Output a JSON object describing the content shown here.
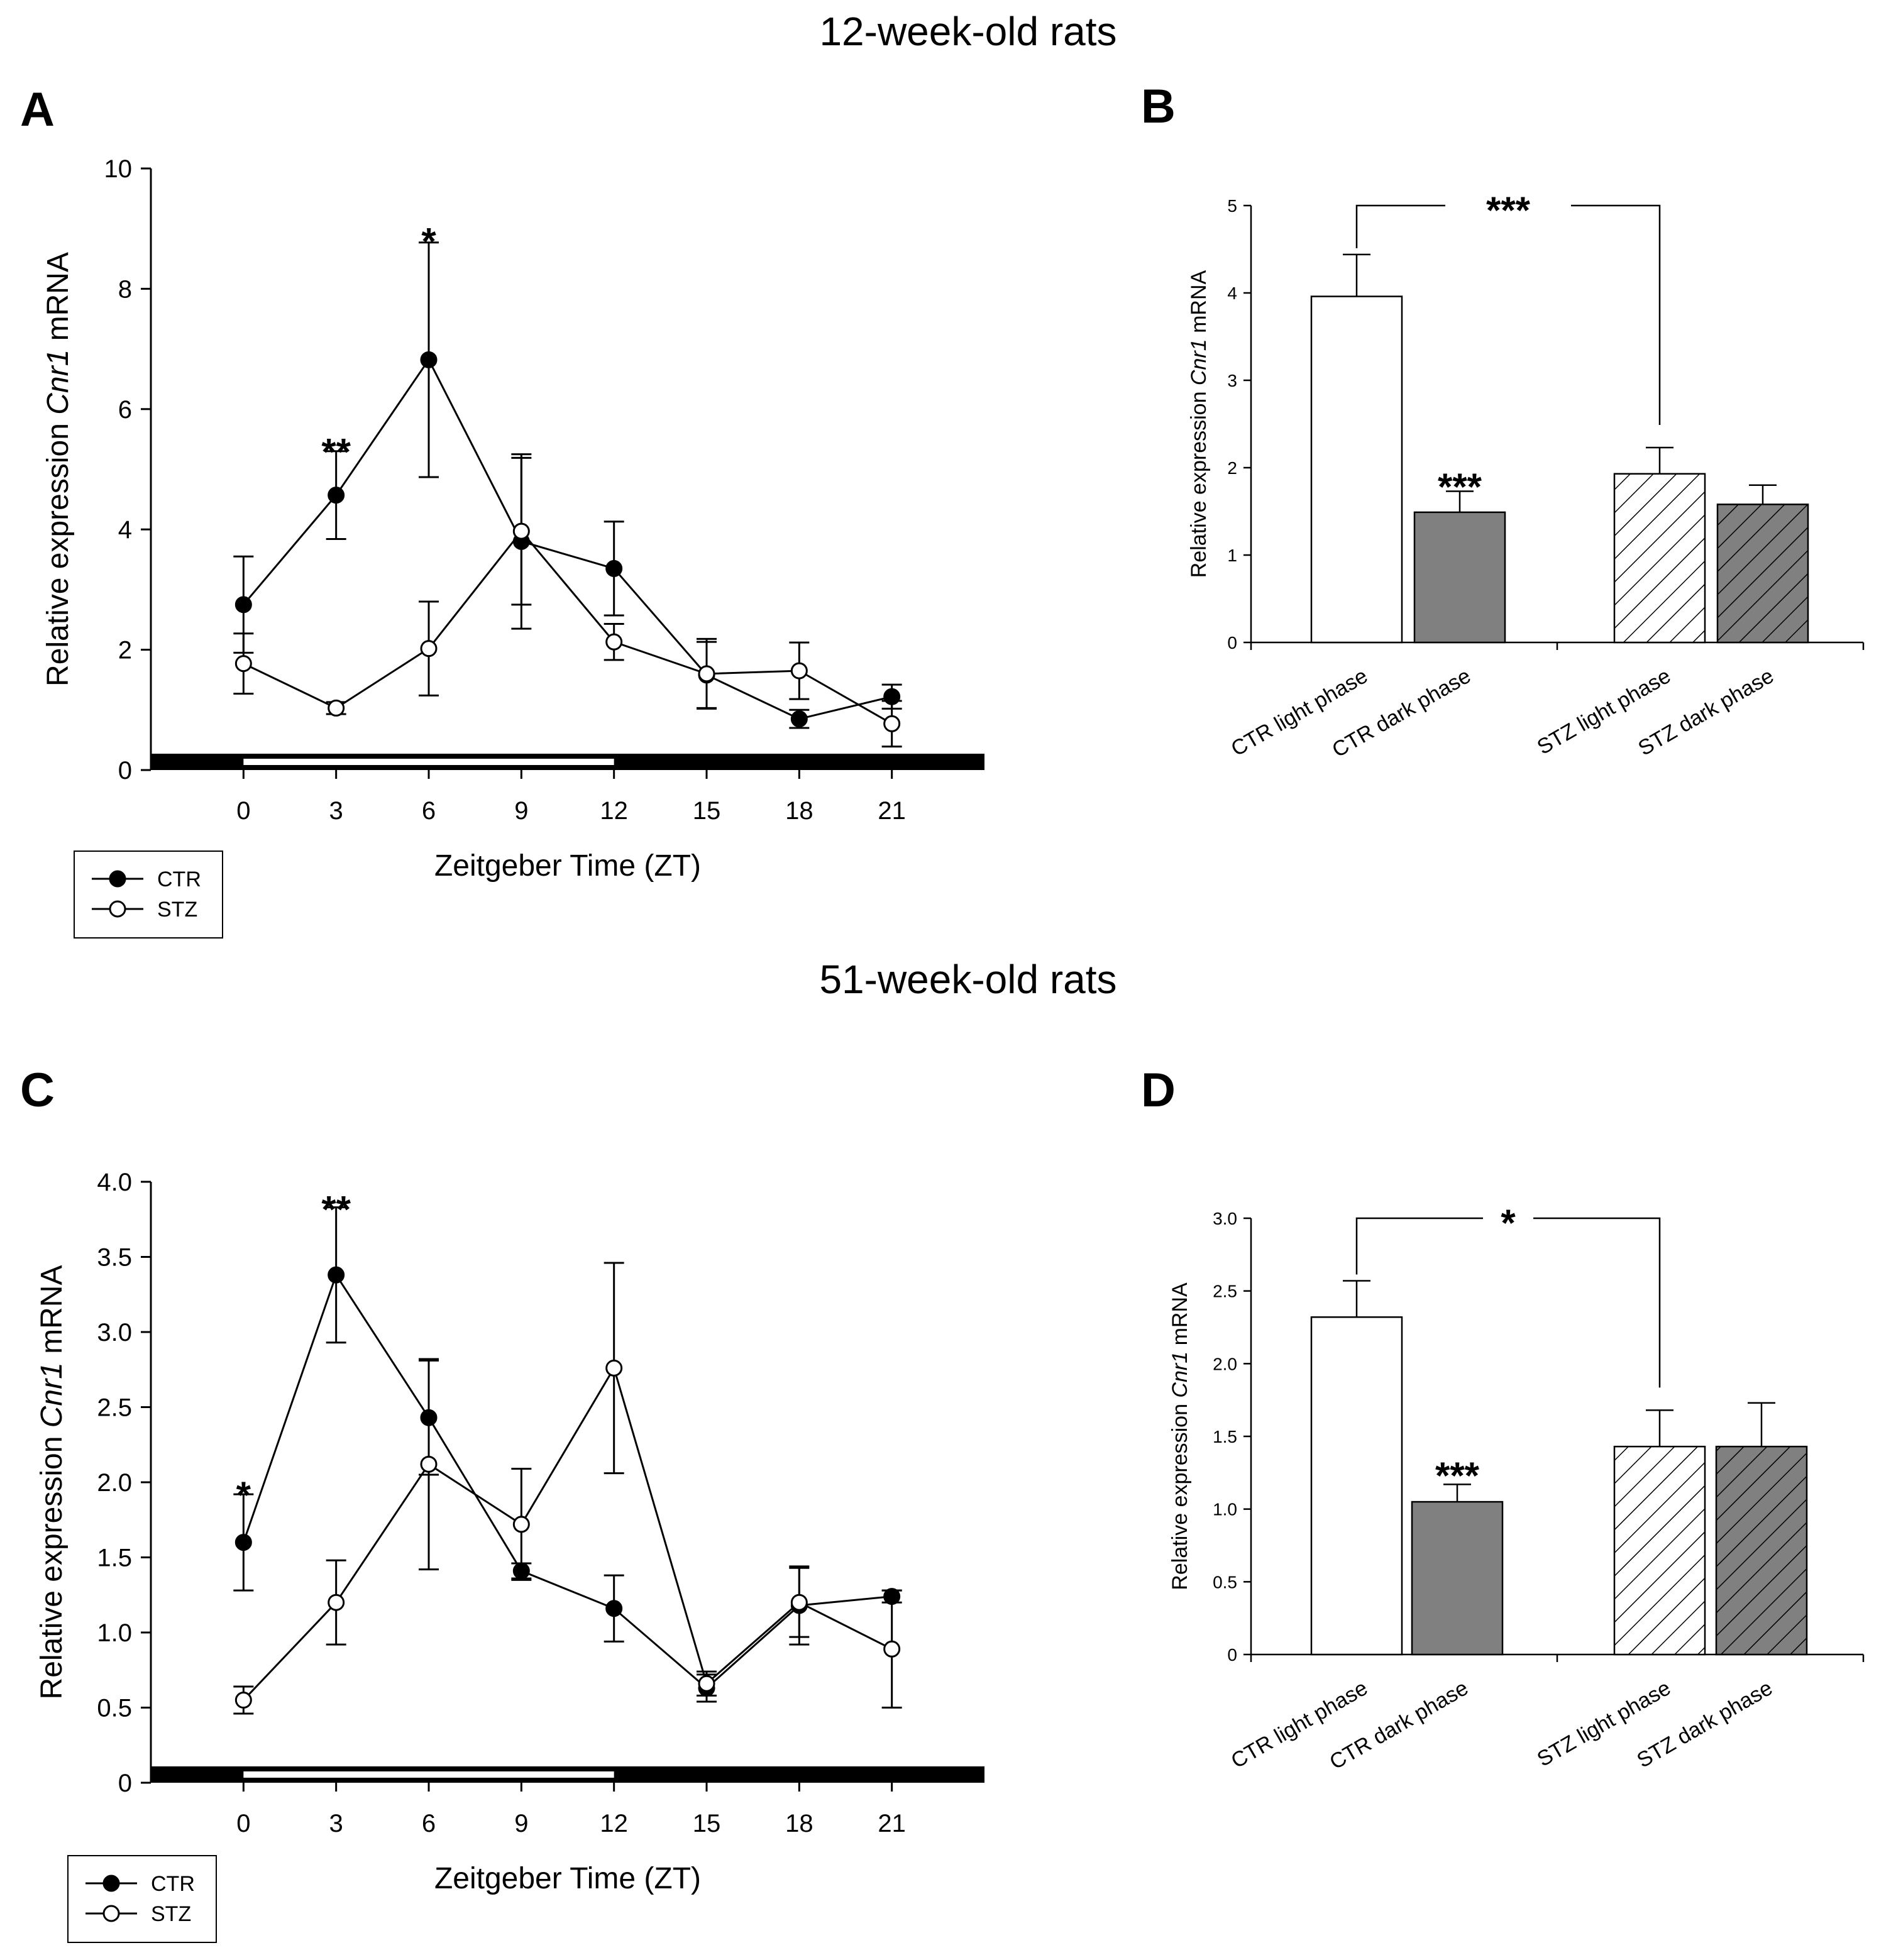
{
  "section_titles": [
    "12-week-old rats",
    "51-week-old rats"
  ],
  "colors": {
    "ctr_fill": "#000000",
    "stz_fill": "#ffffff",
    "dark_bar": "#808080",
    "line": "#000000"
  },
  "chart_data": [
    {
      "panel": "A",
      "type": "line",
      "xlabel": "Zeitgeber Time (ZT)",
      "ylabel": "Relative expression Cnr1 mRNA",
      "ylabel_parts": [
        "Relative expression ",
        "Cnr1",
        " mRNA"
      ],
      "x": [
        0,
        3,
        6,
        9,
        12,
        15,
        18,
        21
      ],
      "xlim": [
        -3,
        24
      ],
      "ylim": [
        0,
        10
      ],
      "yticks": [
        0,
        2,
        4,
        6,
        8,
        10
      ],
      "ytick_labels": [
        "0",
        "2",
        "4",
        "6",
        "8",
        "10"
      ],
      "light_phase": [
        0,
        12
      ],
      "series": [
        {
          "name": "CTR",
          "marker": "filled-circle",
          "values": [
            2.75,
            4.57,
            6.82,
            3.8,
            3.35,
            1.58,
            0.85,
            1.22
          ],
          "errors": [
            0.8,
            0.73,
            1.95,
            1.45,
            0.78,
            0.55,
            0.15,
            0.2
          ]
        },
        {
          "name": "STZ",
          "marker": "open-circle",
          "values": [
            1.77,
            1.03,
            2.02,
            3.97,
            2.13,
            1.6,
            1.65,
            0.77
          ],
          "errors": [
            0.5,
            0.1,
            0.78,
            1.22,
            0.3,
            0.58,
            0.47,
            0.38
          ]
        }
      ],
      "annotations": [
        {
          "text": "**",
          "x": 3,
          "y": 5.45
        },
        {
          "text": "*",
          "x": 6,
          "y": 8.95
        }
      ],
      "legend": [
        "CTR",
        "STZ"
      ],
      "legend_position": "bottom-left"
    },
    {
      "panel": "B",
      "type": "bar",
      "ylabel": "Relative expression Cnr1 mRNA",
      "ylabel_parts": [
        "Relative expression ",
        "Cnr1",
        " mRNA"
      ],
      "categories": [
        "CTR light phase",
        "CTR dark phase",
        "STZ light phase",
        "STZ dark phase"
      ],
      "values": [
        3.96,
        1.49,
        1.93,
        1.58
      ],
      "errors": [
        0.48,
        0.24,
        0.3,
        0.22
      ],
      "styles": [
        "white",
        "gray",
        "white-hatched",
        "gray-hatched"
      ],
      "ylim": [
        0,
        5
      ],
      "yticks": [
        0,
        1,
        2,
        3,
        4,
        5
      ],
      "ytick_labels": [
        "0",
        "1",
        "2",
        "3",
        "4",
        "5"
      ],
      "annotations": [
        {
          "text": "***",
          "x": "CTR dark phase",
          "y": 1.85
        },
        {
          "text": "***",
          "type": "bracket",
          "from": "CTR light phase",
          "to": "STZ light phase",
          "y": 5.0
        }
      ]
    },
    {
      "panel": "C",
      "type": "line",
      "xlabel": "Zeitgeber Time (ZT)",
      "ylabel": "Relative expression Cnr1 mRNA",
      "ylabel_parts": [
        "Relative expression ",
        "Cnr1",
        " mRNA"
      ],
      "x": [
        0,
        3,
        6,
        9,
        12,
        15,
        18,
        21
      ],
      "xlim": [
        -3,
        24
      ],
      "ylim": [
        0,
        4.0
      ],
      "yticks": [
        0,
        0.5,
        1.0,
        1.5,
        2.0,
        2.5,
        3.0,
        3.5,
        4.0
      ],
      "ytick_labels": [
        "0",
        "0.5",
        "1.0",
        "1.5",
        "2.0",
        "2.5",
        "3.0",
        "3.5",
        "4.0"
      ],
      "light_phase": [
        0,
        12
      ],
      "series": [
        {
          "name": "CTR",
          "marker": "filled-circle",
          "values": [
            1.6,
            3.38,
            2.43,
            1.41,
            1.16,
            0.63,
            1.18,
            1.24
          ],
          "errors": [
            0.32,
            0.45,
            0.38,
            0.05,
            0.22,
            0.09,
            0.26,
            0.04
          ]
        },
        {
          "name": "STZ",
          "marker": "open-circle",
          "values": [
            0.55,
            1.2,
            2.12,
            1.72,
            2.76,
            0.66,
            1.2,
            0.89
          ],
          "errors": [
            0.09,
            0.28,
            0.7,
            0.37,
            0.7,
            0.08,
            0.23,
            0.39
          ]
        }
      ],
      "annotations": [
        {
          "text": "*",
          "x": 0,
          "y": 1.98
        },
        {
          "text": "**",
          "x": 3,
          "y": 3.88
        }
      ],
      "legend": [
        "CTR",
        "STZ"
      ],
      "legend_position": "bottom-left"
    },
    {
      "panel": "D",
      "type": "bar",
      "ylabel": "Relative expression Cnr1 mRNA",
      "ylabel_parts": [
        "Relative expression ",
        "Cnr1",
        " mRNA"
      ],
      "categories": [
        "CTR light phase",
        "CTR dark phase",
        "STZ light phase",
        "STZ dark phase"
      ],
      "values": [
        2.32,
        1.05,
        1.43,
        1.43
      ],
      "errors": [
        0.25,
        0.12,
        0.25,
        0.3
      ],
      "styles": [
        "white",
        "gray",
        "white-hatched",
        "gray-hatched"
      ],
      "ylim": [
        0,
        3.0
      ],
      "yticks": [
        0,
        0.5,
        1.0,
        1.5,
        2.0,
        2.5,
        3.0
      ],
      "ytick_labels": [
        "0",
        "0.5",
        "1.0",
        "1.5",
        "2.0",
        "2.5",
        "3.0"
      ],
      "annotations": [
        {
          "text": "***",
          "x": "CTR dark phase",
          "y": 1.27
        },
        {
          "text": "*",
          "type": "bracket",
          "from": "CTR light phase",
          "to": "STZ light phase",
          "y": 3.0
        }
      ]
    }
  ]
}
